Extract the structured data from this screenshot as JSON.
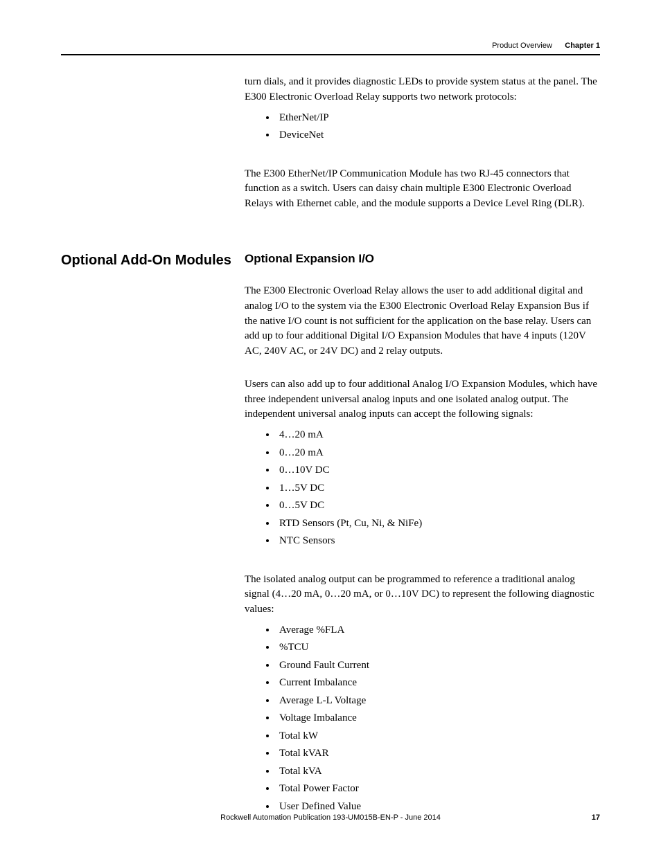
{
  "header": {
    "section": "Product Overview",
    "chapter": "Chapter 1"
  },
  "intro": {
    "para1": "turn dials, and it provides diagnostic LEDs to provide system status at the panel. The E300 Electronic Overload Relay supports two network protocols:",
    "protocols": [
      "EtherNet/IP",
      "DeviceNet"
    ],
    "para2": "The E300 EtherNet/IP Communication Module has two RJ-45 connectors that function as a switch. Users can daisy chain multiple E300 Electronic Overload Relays with Ethernet cable, and the module supports a Device Level Ring (DLR)."
  },
  "addons": {
    "heading": "Optional Add-On Modules",
    "subheading": "Optional Expansion I/O",
    "para1": "The E300 Electronic Overload Relay allows the user to add additional digital and analog I/O to the system via the E300 Electronic Overload Relay Expansion Bus if the native I/O count is not sufficient for the application on the base relay. Users can add up to four additional Digital I/O Expansion Modules that have 4 inputs (120V AC, 240V AC, or 24V DC) and 2 relay outputs.",
    "para2": "Users can also add up to four additional Analog I/O Expansion Modules, which have three independent universal analog inputs and one isolated analog output. The independent universal analog inputs can accept the following signals:",
    "signals": [
      "4…20 mA",
      "0…20 mA",
      "0…10V DC",
      "1…5V DC",
      "0…5V DC",
      "RTD Sensors (Pt, Cu, Ni, & NiFe)",
      "NTC Sensors"
    ],
    "para3": "The isolated analog output can be programmed to reference a traditional analog signal (4…20 mA, 0…20 mA, or 0…10V DC) to represent the following diagnostic values:",
    "diagnostics": [
      "Average %FLA",
      "%TCU",
      "Ground Fault Current",
      "Current Imbalance",
      "Average L-L Voltage",
      "Voltage Imbalance",
      "Total kW",
      "Total kVAR",
      "Total kVA",
      "Total Power Factor",
      "User Defined Value"
    ]
  },
  "footer": {
    "publication": "Rockwell Automation Publication 193-UM015B-EN-P - June 2014",
    "page": "17"
  },
  "style": {
    "body_font": "Georgia serif",
    "heading_font": "Arial sans-serif",
    "text_color": "#000000",
    "background": "#ffffff",
    "body_fontsize": 15,
    "heading_fontsize": 20,
    "subheading_fontsize": 17,
    "header_fontsize": 11,
    "footer_fontsize": 11
  }
}
